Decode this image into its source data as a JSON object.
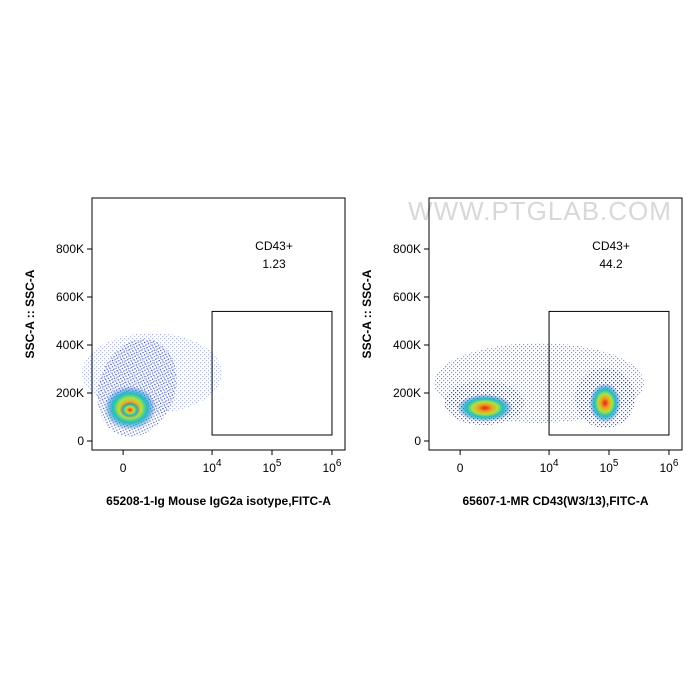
{
  "watermark": "WWW.PTGLAB.COM",
  "chart_data": [
    {
      "type": "scatter",
      "xlabel": "65208-1-Ig Mouse IgG2a isotype,FITC-A",
      "ylabel": "SSC-A :: SSC-A",
      "xlim": [
        -3500,
        1650000
      ],
      "ylim": [
        -37500,
        1012500
      ],
      "xticks": [
        0,
        {
          "value": 10000,
          "label": "10",
          "exp": "4"
        },
        {
          "value": 100000,
          "label": "10",
          "exp": "5"
        },
        {
          "value": 1000000,
          "label": "10",
          "exp": "6"
        }
      ],
      "yticks": [
        0,
        {
          "value": 200000,
          "label": "200K"
        },
        {
          "value": 400000,
          "label": "400K"
        },
        {
          "value": 600000,
          "label": "600K"
        },
        {
          "value": 800000,
          "label": "800K"
        }
      ],
      "gate": {
        "name": "CD43+",
        "percent": 1.23,
        "x": [
          10000,
          1000000
        ],
        "y": [
          25000,
          540000
        ]
      }
    },
    {
      "type": "scatter",
      "xlabel": "65607-1-MR CD43(W3/13),FITC-A",
      "ylabel": "SSC-A :: SSC-A",
      "xlim": [
        -3500,
        1650000
      ],
      "ylim": [
        -37500,
        1012500
      ],
      "xticks": [
        0,
        {
          "value": 10000,
          "label": "10",
          "exp": "4"
        },
        {
          "value": 100000,
          "label": "10",
          "exp": "5"
        },
        {
          "value": 1000000,
          "label": "10",
          "exp": "6"
        }
      ],
      "yticks": [
        0,
        {
          "value": 200000,
          "label": "200K"
        },
        {
          "value": 400000,
          "label": "400K"
        },
        {
          "value": 600000,
          "label": "600K"
        },
        {
          "value": 800000,
          "label": "800K"
        }
      ],
      "gate": {
        "name": "CD43+",
        "percent": 44.2,
        "x": [
          10000,
          1000000
        ],
        "y": [
          25000,
          540000
        ]
      }
    }
  ]
}
